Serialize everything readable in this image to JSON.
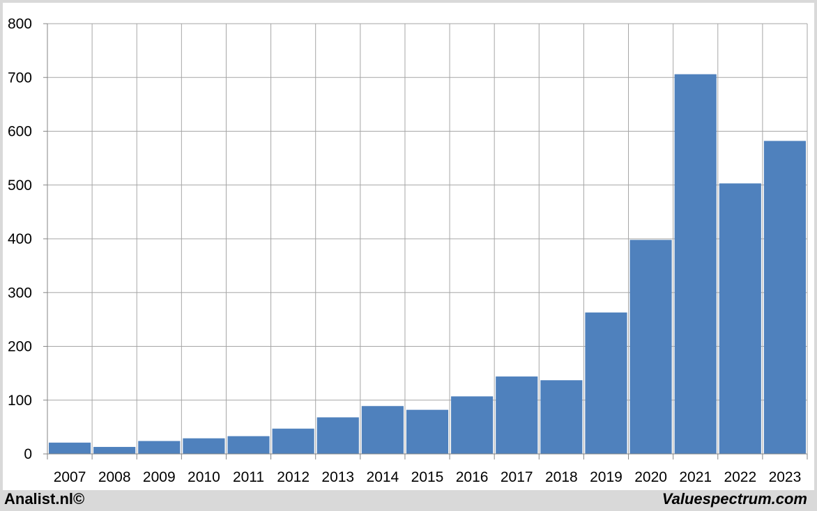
{
  "footer": {
    "left_text": "Analist.nl©",
    "right_text": "Valuespectrum.com"
  },
  "colors": {
    "bar": "#4f81bd",
    "grid": "#a6a6a6",
    "background": "#ffffff",
    "frame": "#d9d9d9"
  },
  "chart_data": {
    "type": "bar",
    "title": "",
    "xlabel": "",
    "ylabel": "",
    "categories": [
      "2007",
      "2008",
      "2009",
      "2010",
      "2011",
      "2012",
      "2013",
      "2014",
      "2015",
      "2016",
      "2017",
      "2018",
      "2019",
      "2020",
      "2021",
      "2022",
      "2023"
    ],
    "values": [
      21,
      13,
      24,
      29,
      33,
      47,
      68,
      89,
      82,
      107,
      144,
      137,
      263,
      398,
      706,
      503,
      582
    ],
    "ylim": [
      0,
      800
    ],
    "yticks": [
      0,
      100,
      200,
      300,
      400,
      500,
      600,
      700,
      800
    ],
    "grid": true,
    "legend": "none"
  }
}
